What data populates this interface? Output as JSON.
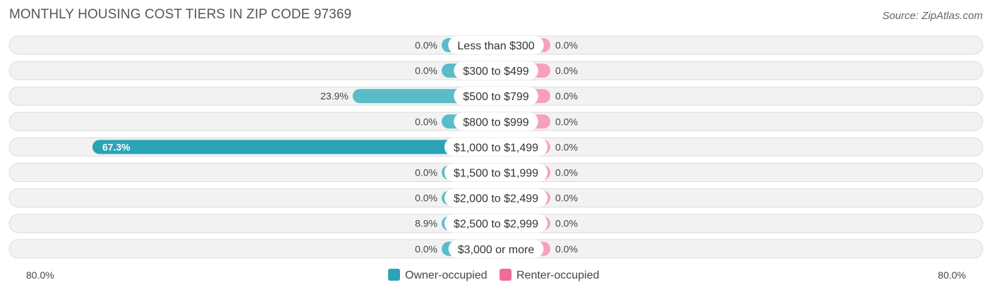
{
  "title": "MONTHLY HOUSING COST TIERS IN ZIP CODE 97369",
  "source": "Source: ZipAtlas.com",
  "chart_data": {
    "type": "bar",
    "orientation": "horizontal-diverging",
    "title": "MONTHLY HOUSING COST TIERS IN ZIP CODE 97369",
    "categories": [
      "Less than $300",
      "$300 to $499",
      "$500 to $799",
      "$800 to $999",
      "$1,000 to $1,499",
      "$1,500 to $1,999",
      "$2,000 to $2,499",
      "$2,500 to $2,999",
      "$3,000 or more"
    ],
    "series": [
      {
        "name": "Owner-occupied",
        "color": "#5bbcc9",
        "values": [
          0.0,
          0.0,
          23.9,
          0.0,
          67.3,
          0.0,
          0.0,
          8.9,
          0.0
        ],
        "labels": [
          "0.0%",
          "0.0%",
          "23.9%",
          "0.0%",
          "67.3%",
          "0.0%",
          "0.0%",
          "8.9%",
          "0.0%"
        ]
      },
      {
        "name": "Renter-occupied",
        "color": "#f7a0bc",
        "values": [
          0.0,
          0.0,
          0.0,
          0.0,
          0.0,
          0.0,
          0.0,
          0.0,
          0.0
        ],
        "labels": [
          "0.0%",
          "0.0%",
          "0.0%",
          "0.0%",
          "0.0%",
          "0.0%",
          "0.0%",
          "0.0%",
          "0.0%"
        ]
      }
    ],
    "xlim": [
      -80,
      80
    ],
    "axis_left_label": "80.0%",
    "axis_right_label": "80.0%",
    "legend": [
      {
        "name": "Owner-occupied",
        "color": "#2aa4b5"
      },
      {
        "name": "Renter-occupied",
        "color": "#ef6e98"
      }
    ],
    "legend_position": "bottom-center",
    "highlight_color": "#2aa4b5"
  }
}
